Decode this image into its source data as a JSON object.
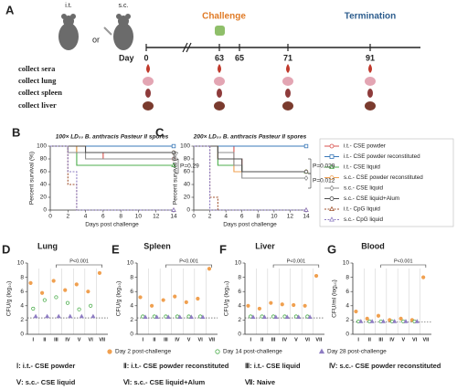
{
  "panel_a": {
    "label": "A",
    "routes": [
      "i.t.",
      "or",
      "s.c."
    ],
    "challenge": "Challenge",
    "termination": "Termination",
    "day_label": "Day",
    "days": [
      0,
      63,
      65,
      71,
      91
    ],
    "rows": [
      "collect sera",
      "collect lung",
      "collect spleen",
      "collect liver"
    ]
  },
  "chart_data": [
    {
      "type": "line",
      "panel": "B",
      "title": "100× LD₅₀ B. anthracis Pasteur II spores",
      "xlabel": "Days post challenge",
      "ylabel": "Percent survival (%)",
      "x": [
        0,
        1,
        2,
        3,
        4,
        5,
        6,
        7,
        8,
        9,
        10,
        11,
        12,
        13,
        14
      ],
      "xlim": [
        0,
        14
      ],
      "xticks": [
        0,
        2,
        4,
        6,
        8,
        10,
        12,
        14
      ],
      "ylim": [
        0,
        100
      ],
      "yticks": [
        0,
        20,
        40,
        60,
        80,
        100
      ],
      "annotations": [
        "P=0.29"
      ],
      "series": [
        {
          "name": "i.t.- CSE powder",
          "color": "#d9534f",
          "marker": "circle",
          "values": [
            100,
            100,
            100,
            90,
            90,
            90,
            80,
            80,
            80,
            80,
            80,
            80,
            80,
            80,
            80
          ]
        },
        {
          "name": "i.t.- CSE powder reconstituted",
          "color": "#3a78b8",
          "marker": "square",
          "values": [
            100,
            100,
            100,
            100,
            100,
            100,
            100,
            100,
            100,
            100,
            100,
            100,
            100,
            100,
            100
          ]
        },
        {
          "name": "i.t.- CSE liquid",
          "color": "#4cae4c",
          "marker": "triangle",
          "values": [
            100,
            100,
            100,
            70,
            70,
            70,
            70,
            70,
            70,
            70,
            70,
            70,
            70,
            70,
            70
          ]
        },
        {
          "name": "s.c.- CSE powder reconstituted",
          "color": "#f0a050",
          "marker": "circle",
          "values": [
            100,
            100,
            100,
            90,
            90,
            90,
            90,
            90,
            90,
            90,
            90,
            90,
            90,
            90,
            90
          ]
        },
        {
          "name": "s.c.- CSE liquid",
          "color": "#8c8c8c",
          "marker": "diamond",
          "values": [
            100,
            100,
            90,
            90,
            80,
            80,
            80,
            80,
            80,
            80,
            80,
            80,
            80,
            80,
            80
          ]
        },
        {
          "name": "s.c.- CSE liquid+Alum",
          "color": "#4d4d4d",
          "marker": "circle",
          "values": [
            100,
            100,
            100,
            100,
            90,
            90,
            90,
            90,
            90,
            90,
            90,
            90,
            90,
            90,
            90
          ]
        },
        {
          "name": "i.t.- CpG liquid",
          "color": "#a0522d",
          "marker": "triangle",
          "values": [
            100,
            100,
            40,
            0,
            0,
            0,
            0,
            0,
            0,
            0,
            0,
            0,
            0,
            0,
            0
          ]
        },
        {
          "name": "s.c.- CpG liquid",
          "color": "#8e7cc3",
          "marker": "triangle",
          "values": [
            100,
            100,
            60,
            0,
            0,
            0,
            0,
            0,
            0,
            0,
            0,
            0,
            0,
            0,
            0
          ]
        }
      ]
    },
    {
      "type": "line",
      "panel": "C",
      "title": "200× LD₅₀ B. anthracis Pasteur II spores",
      "xlabel": "Days post challenge",
      "ylabel": "Percent survival (%)",
      "x": [
        0,
        1,
        2,
        3,
        4,
        5,
        6,
        7,
        8,
        9,
        10,
        11,
        12,
        13,
        14
      ],
      "xlim": [
        0,
        14
      ],
      "xticks": [
        0,
        2,
        4,
        6,
        8,
        10,
        12,
        14
      ],
      "ylim": [
        0,
        100
      ],
      "yticks": [
        0,
        20,
        40,
        60,
        80,
        100
      ],
      "annotations": [
        "P=0.029",
        "P=0.012"
      ],
      "series": [
        {
          "color": "#d9534f",
          "marker": "circle",
          "values": [
            100,
            100,
            100,
            100,
            100,
            80,
            60,
            60,
            60,
            60,
            60,
            60,
            60,
            60,
            60
          ]
        },
        {
          "color": "#3a78b8",
          "marker": "square",
          "values": [
            100,
            100,
            100,
            100,
            100,
            100,
            100,
            100,
            100,
            100,
            100,
            100,
            100,
            100,
            100
          ]
        },
        {
          "color": "#4cae4c",
          "marker": "triangle",
          "values": [
            100,
            100,
            100,
            70,
            70,
            70,
            60,
            60,
            60,
            60,
            60,
            60,
            60,
            60,
            60
          ]
        },
        {
          "color": "#f0a050",
          "marker": "circle",
          "values": [
            100,
            100,
            100,
            80,
            80,
            60,
            60,
            60,
            60,
            60,
            60,
            60,
            60,
            60,
            60
          ]
        },
        {
          "color": "#8c8c8c",
          "marker": "diamond",
          "values": [
            100,
            100,
            100,
            90,
            90,
            70,
            50,
            50,
            50,
            50,
            50,
            50,
            50,
            50,
            50
          ]
        },
        {
          "color": "#4d4d4d",
          "marker": "circle",
          "values": [
            100,
            100,
            100,
            80,
            80,
            80,
            60,
            60,
            60,
            60,
            60,
            60,
            60,
            60,
            60
          ]
        },
        {
          "color": "#a0522d",
          "marker": "triangle",
          "values": [
            100,
            100,
            20,
            0,
            0,
            0,
            0,
            0,
            0,
            0,
            0,
            0,
            0,
            0,
            0
          ]
        },
        {
          "color": "#8e7cc3",
          "marker": "triangle",
          "values": [
            100,
            100,
            0,
            0,
            0,
            0,
            0,
            0,
            0,
            0,
            0,
            0,
            0,
            0,
            0
          ]
        }
      ]
    },
    {
      "type": "scatter",
      "panel": "D",
      "title": "Lung",
      "ylabel": "CFU/g (log₁₀)",
      "categories": [
        "I",
        "II",
        "III",
        "IV",
        "V",
        "VI",
        "VII"
      ],
      "ylim": [
        0,
        10
      ],
      "yticks": [
        0,
        2,
        4,
        6,
        8,
        10
      ],
      "reference_line": 2.3,
      "annotations": [
        "P<0.001"
      ],
      "series": [
        {
          "name": "Day 2 post-challenge",
          "color": "#f0a050",
          "marker": "circle",
          "values": [
            7.2,
            5.8,
            7.5,
            6.2,
            7.0,
            6.0,
            8.6
          ]
        },
        {
          "name": "Day 14 post-challenge",
          "color": "#4cae4c",
          "marker": "circle",
          "values": [
            3.6,
            4.8,
            5.2,
            4.4,
            3.5,
            4.0,
            null
          ]
        },
        {
          "name": "Day 28 post-challenge",
          "color": "#8e7cc3",
          "marker": "triangle",
          "values": [
            2.5,
            2.5,
            2.5,
            2.5,
            2.5,
            2.5,
            null
          ]
        }
      ]
    },
    {
      "type": "scatter",
      "panel": "E",
      "title": "Spleen",
      "ylabel": "CFU/g (log₁₀)",
      "categories": [
        "I",
        "II",
        "III",
        "IV",
        "V",
        "VI",
        "VII"
      ],
      "ylim": [
        0,
        10
      ],
      "yticks": [
        0,
        2,
        4,
        6,
        8,
        10
      ],
      "reference_line": 2.3,
      "annotations": [
        "P<0.001"
      ],
      "series": [
        {
          "color": "#f0a050",
          "marker": "circle",
          "values": [
            5.2,
            4.0,
            4.8,
            5.3,
            4.5,
            5.0,
            9.2
          ]
        },
        {
          "color": "#4cae4c",
          "marker": "circle",
          "values": [
            2.5,
            2.5,
            2.5,
            2.5,
            2.5,
            2.5,
            null
          ]
        },
        {
          "color": "#8e7cc3",
          "marker": "triangle",
          "values": [
            2.4,
            2.4,
            2.4,
            2.4,
            2.4,
            2.4,
            null
          ]
        }
      ]
    },
    {
      "type": "scatter",
      "panel": "F",
      "title": "Liver",
      "ylabel": "CFU/g (log₁₀)",
      "categories": [
        "I",
        "II",
        "III",
        "IV",
        "V",
        "VI",
        "VII"
      ],
      "ylim": [
        0,
        10
      ],
      "yticks": [
        0,
        2,
        4,
        6,
        8,
        10
      ],
      "reference_line": 2.3,
      "annotations": [
        "P<0.001"
      ],
      "series": [
        {
          "color": "#f0a050",
          "marker": "circle",
          "values": [
            4.0,
            3.6,
            4.4,
            4.2,
            4.1,
            4.0,
            8.2
          ]
        },
        {
          "color": "#4cae4c",
          "marker": "circle",
          "values": [
            2.5,
            2.5,
            2.5,
            2.5,
            2.5,
            2.5,
            null
          ]
        },
        {
          "color": "#8e7cc3",
          "marker": "triangle",
          "values": [
            2.4,
            2.4,
            2.4,
            2.4,
            2.4,
            2.4,
            null
          ]
        }
      ]
    },
    {
      "type": "scatter",
      "panel": "G",
      "title": "Blood",
      "ylabel": "CFU/ml (log₁₀)",
      "categories": [
        "I",
        "II",
        "III",
        "IV",
        "V",
        "VI",
        "VII"
      ],
      "ylim": [
        0,
        10
      ],
      "yticks": [
        0,
        2,
        4,
        6,
        8,
        10
      ],
      "reference_line": 1.7,
      "annotations": [
        "P<0.001"
      ],
      "series": [
        {
          "color": "#f0a050",
          "marker": "circle",
          "values": [
            3.2,
            2.2,
            2.6,
            2.0,
            2.2,
            2.0,
            8.0
          ]
        },
        {
          "color": "#4cae4c",
          "marker": "circle",
          "values": [
            1.8,
            1.8,
            1.8,
            1.8,
            1.8,
            1.8,
            null
          ]
        },
        {
          "color": "#8e7cc3",
          "marker": "triangle",
          "values": [
            1.8,
            1.8,
            1.8,
            1.8,
            1.8,
            1.8,
            null
          ]
        }
      ]
    }
  ],
  "group_key": [
    "Ⅰ: i.t.- CSE powder",
    "Ⅱ: i.t.- CSE powder reconstituted",
    "Ⅲ: i.t.- CSE liquid",
    "Ⅳ: s.c.- CSE powder reconstituted",
    "Ⅴ: s.c.- CSE liquid",
    "Ⅵ: s.c.- CSE liquid+Alum",
    "Ⅶ: Naive"
  ]
}
